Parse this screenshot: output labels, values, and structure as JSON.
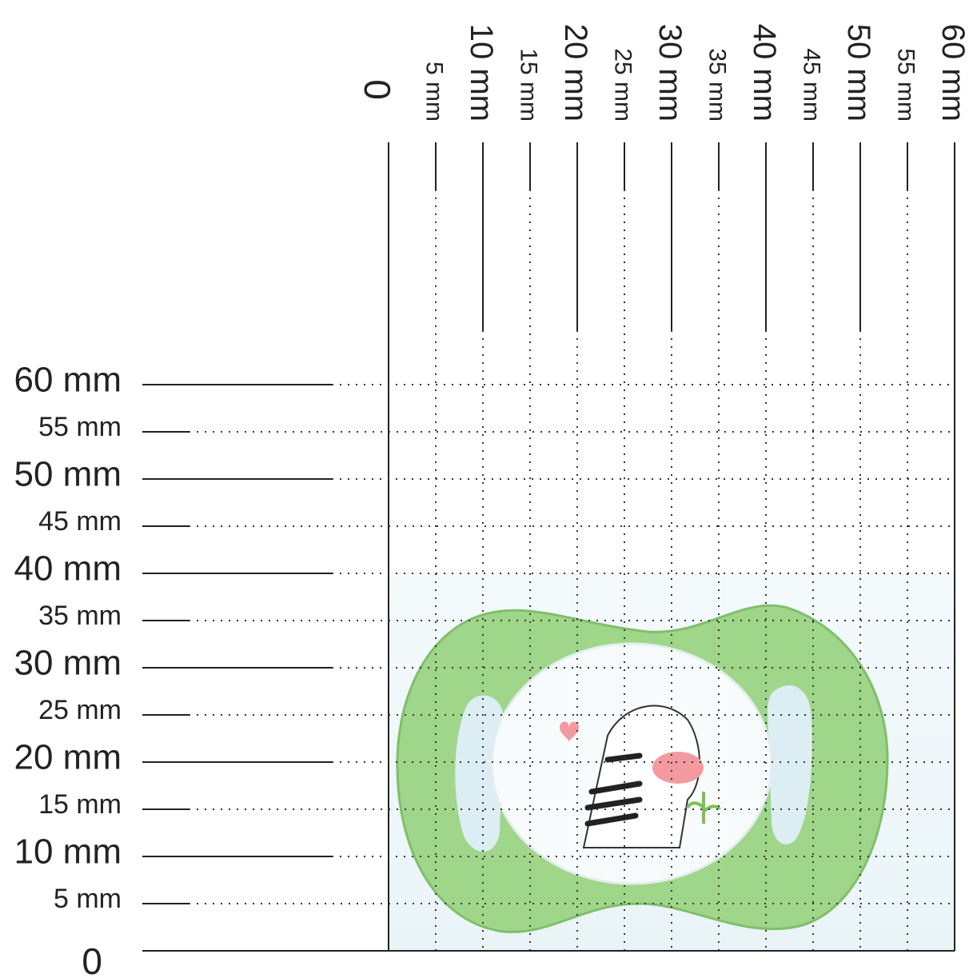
{
  "x_labels": [
    "0",
    "5 mm",
    "10 mm",
    "15 mm",
    "20 mm",
    "25 mm",
    "30 mm",
    "35 mm",
    "40 mm",
    "45 mm",
    "50 mm",
    "55 mm",
    "60 mm"
  ],
  "y_labels": [
    "0",
    "5 mm",
    "10 mm",
    "15 mm",
    "20 mm",
    "25 mm",
    "30 mm",
    "35 mm",
    "40 mm",
    "45 mm",
    "50 mm",
    "55 mm",
    "60 mm"
  ]
}
